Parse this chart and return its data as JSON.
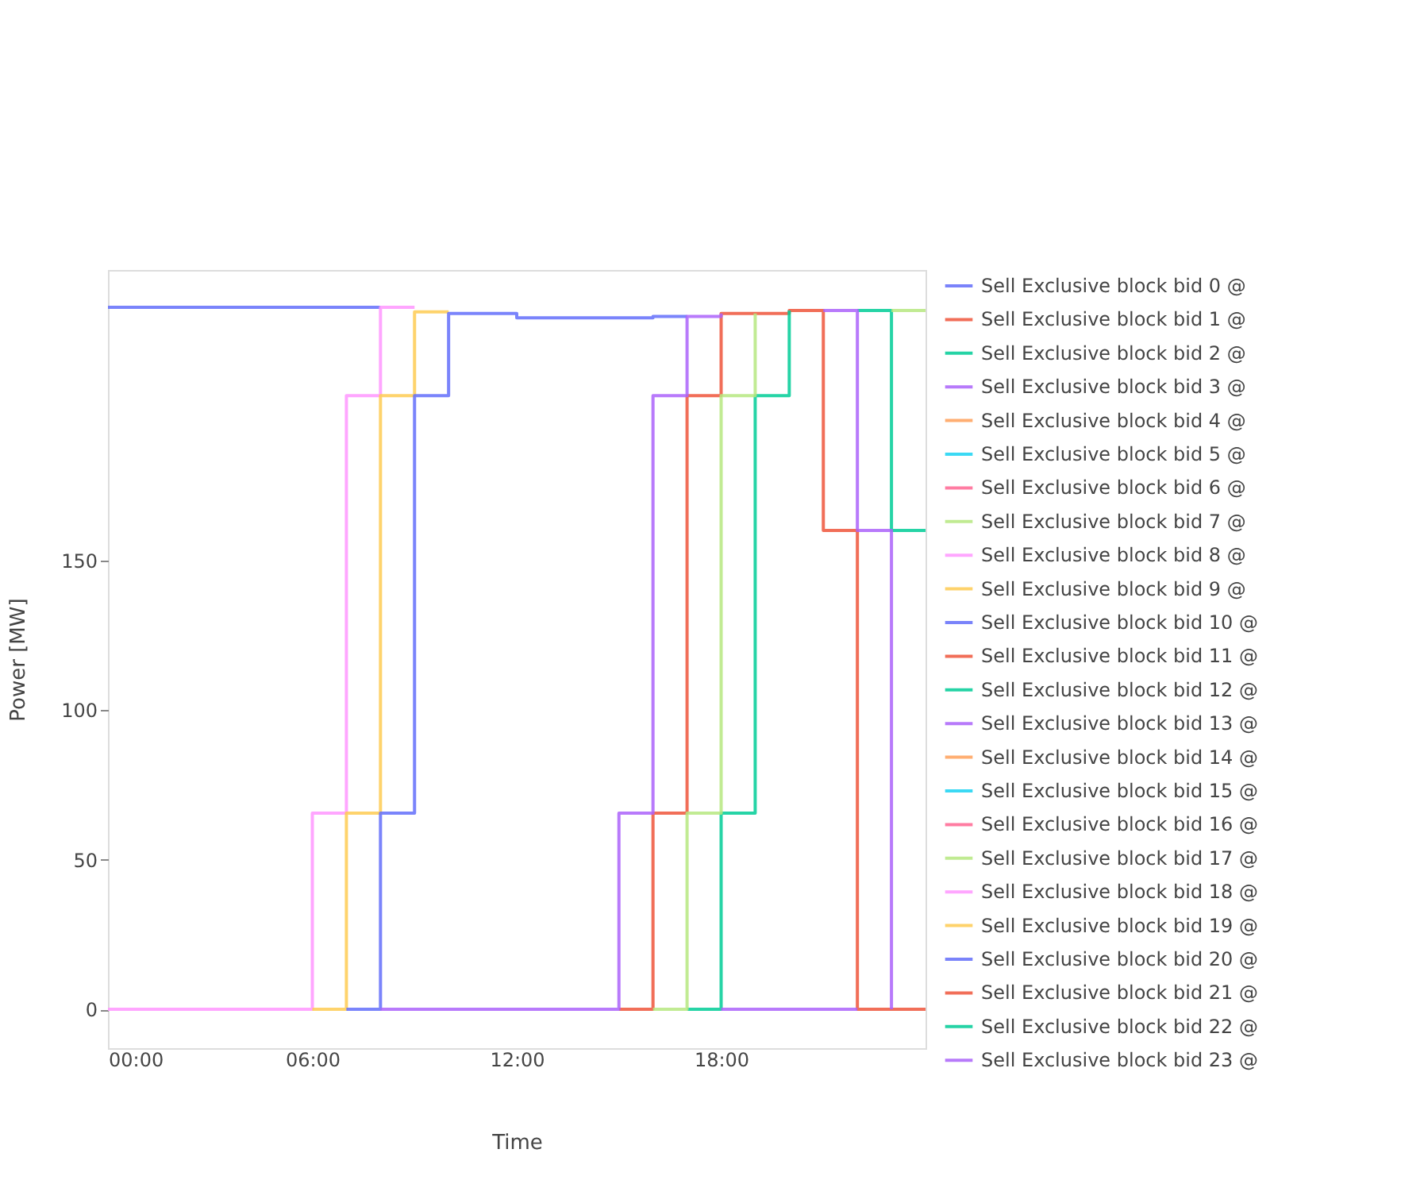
{
  "chart_data": {
    "type": "step",
    "xlabel": "Time",
    "ylabel": "Power [MW]",
    "legend": "right",
    "x": [
      0,
      1,
      2,
      3,
      4,
      5,
      6,
      7,
      8,
      9,
      10,
      11,
      12,
      13,
      14,
      15,
      16,
      17,
      18,
      19,
      20,
      21,
      22,
      23,
      24
    ],
    "xlim": [
      0,
      24
    ],
    "xticks": [
      {
        "value": 0,
        "label": "00:00"
      },
      {
        "value": 6,
        "label": "06:00"
      },
      {
        "value": 12,
        "label": "12:00"
      },
      {
        "value": 18,
        "label": "18:00"
      }
    ],
    "ylim": [
      -13,
      247
    ],
    "yticks": [
      0,
      50,
      100,
      150
    ],
    "series": [
      {
        "name": "Sell Exclusive block bid 0 @",
        "color": "#636efa",
        "values": [
          234.5,
          234.5,
          234.5,
          234.5,
          234.5,
          234.5,
          234.5,
          234.5,
          234.5,
          null,
          null,
          null,
          null,
          null,
          null,
          null,
          null,
          null,
          null,
          null,
          null,
          null,
          null,
          null,
          null
        ]
      },
      {
        "name": "Sell Exclusive block bid 1 @",
        "color": "#ef553b",
        "values": [
          null,
          null,
          null,
          null,
          null,
          null,
          null,
          null,
          null,
          null,
          null,
          null,
          null,
          null,
          null,
          null,
          null,
          null,
          null,
          null,
          null,
          null,
          null,
          null,
          null
        ]
      },
      {
        "name": "Sell Exclusive block bid 2 @",
        "color": "#00cc96",
        "values": [
          null,
          null,
          null,
          null,
          null,
          null,
          null,
          null,
          null,
          null,
          null,
          null,
          null,
          null,
          null,
          null,
          null,
          null,
          null,
          null,
          null,
          null,
          null,
          null,
          null
        ]
      },
      {
        "name": "Sell Exclusive block bid 3 @",
        "color": "#ab63fa",
        "values": [
          null,
          null,
          null,
          null,
          null,
          null,
          null,
          null,
          null,
          null,
          null,
          null,
          null,
          null,
          null,
          null,
          null,
          null,
          null,
          null,
          null,
          null,
          null,
          null,
          null
        ]
      },
      {
        "name": "Sell Exclusive block bid 4 @",
        "color": "#ffa15a",
        "values": [
          null,
          null,
          null,
          null,
          null,
          null,
          null,
          null,
          null,
          null,
          null,
          null,
          null,
          null,
          null,
          null,
          null,
          null,
          null,
          null,
          null,
          null,
          null,
          null,
          null
        ]
      },
      {
        "name": "Sell Exclusive block bid 5 @",
        "color": "#19d3f3",
        "values": [
          null,
          null,
          null,
          null,
          null,
          null,
          null,
          null,
          null,
          null,
          null,
          null,
          null,
          null,
          null,
          null,
          null,
          null,
          null,
          null,
          null,
          null,
          null,
          null,
          null
        ]
      },
      {
        "name": "Sell Exclusive block bid 6 @",
        "color": "#ff6692",
        "values": [
          null,
          null,
          null,
          null,
          null,
          null,
          null,
          null,
          null,
          null,
          null,
          null,
          null,
          null,
          null,
          null,
          null,
          null,
          null,
          null,
          null,
          null,
          null,
          null,
          null
        ]
      },
      {
        "name": "Sell Exclusive block bid 7 @",
        "color": "#b6e880",
        "values": [
          null,
          null,
          null,
          null,
          null,
          null,
          null,
          null,
          null,
          null,
          null,
          null,
          null,
          null,
          null,
          null,
          null,
          null,
          null,
          null,
          null,
          null,
          null,
          null,
          null
        ]
      },
      {
        "name": "Sell Exclusive block bid 8 @",
        "color": "#ff97ff",
        "values": [
          0,
          0,
          0,
          0,
          0,
          0,
          65.5,
          205,
          234.5,
          234.5,
          null,
          null,
          null,
          null,
          null,
          null,
          null,
          null,
          null,
          null,
          null,
          null,
          null,
          null,
          null
        ]
      },
      {
        "name": "Sell Exclusive block bid 9 @",
        "color": "#fecb52",
        "values": [
          null,
          null,
          null,
          null,
          null,
          null,
          0,
          65.5,
          205,
          233,
          233,
          null,
          null,
          null,
          null,
          null,
          null,
          null,
          null,
          null,
          null,
          null,
          null,
          null,
          null
        ]
      },
      {
        "name": "Sell Exclusive block bid 10 @",
        "color": "#636efa",
        "values": [
          null,
          null,
          null,
          null,
          null,
          null,
          null,
          0,
          65.5,
          205,
          232.5,
          232.5,
          231,
          231,
          231,
          231,
          231.5,
          231.5,
          null,
          null,
          null,
          null,
          null,
          null,
          null
        ]
      },
      {
        "name": "Sell Exclusive block bid 11 @",
        "color": "#ef553b",
        "values": [
          null,
          null,
          null,
          null,
          null,
          null,
          null,
          null,
          null,
          null,
          null,
          null,
          null,
          null,
          null,
          0,
          65.5,
          205,
          232.5,
          232.5,
          233.5,
          160,
          0,
          0,
          0
        ]
      },
      {
        "name": "Sell Exclusive block bid 12 @",
        "color": "#00cc96",
        "values": [
          null,
          null,
          null,
          null,
          null,
          null,
          null,
          null,
          null,
          null,
          null,
          null,
          null,
          null,
          null,
          null,
          null,
          0,
          65.5,
          205,
          233.5,
          null,
          233.5,
          160,
          160
        ]
      },
      {
        "name": "Sell Exclusive block bid 13 @",
        "color": "#ab63fa",
        "values": [
          null,
          null,
          null,
          null,
          null,
          null,
          null,
          null,
          0,
          0,
          0,
          0,
          0,
          0,
          0,
          65.5,
          205,
          231.5,
          232.5,
          null,
          null,
          233.5,
          160,
          0,
          null
        ]
      },
      {
        "name": "Sell Exclusive block bid 14 @",
        "color": "#ffa15a",
        "values": [
          null,
          null,
          null,
          null,
          null,
          null,
          null,
          null,
          null,
          null,
          null,
          null,
          null,
          null,
          null,
          null,
          null,
          null,
          null,
          null,
          null,
          null,
          null,
          null,
          null
        ]
      },
      {
        "name": "Sell Exclusive block bid 15 @",
        "color": "#19d3f3",
        "values": [
          null,
          null,
          null,
          null,
          null,
          null,
          null,
          null,
          null,
          null,
          null,
          null,
          null,
          null,
          null,
          null,
          null,
          null,
          null,
          null,
          null,
          null,
          null,
          null,
          null
        ]
      },
      {
        "name": "Sell Exclusive block bid 16 @",
        "color": "#ff6692",
        "values": [
          null,
          null,
          null,
          null,
          null,
          null,
          null,
          null,
          null,
          null,
          null,
          null,
          null,
          null,
          null,
          null,
          null,
          null,
          null,
          null,
          null,
          null,
          null,
          null,
          null
        ]
      },
      {
        "name": "Sell Exclusive block bid 17 @",
        "color": "#b6e880",
        "values": [
          null,
          null,
          null,
          null,
          null,
          null,
          null,
          null,
          null,
          null,
          null,
          null,
          null,
          null,
          null,
          null,
          0,
          65.5,
          205,
          232.5,
          null,
          null,
          null,
          233.5,
          233.5
        ]
      },
      {
        "name": "Sell Exclusive block bid 18 @",
        "color": "#ff97ff",
        "values": [
          null,
          null,
          null,
          null,
          null,
          null,
          null,
          null,
          null,
          null,
          null,
          null,
          null,
          null,
          null,
          null,
          null,
          null,
          null,
          null,
          null,
          null,
          null,
          null,
          null
        ]
      },
      {
        "name": "Sell Exclusive block bid 19 @",
        "color": "#fecb52",
        "values": [
          null,
          null,
          null,
          null,
          null,
          null,
          null,
          null,
          null,
          null,
          null,
          null,
          null,
          null,
          null,
          null,
          null,
          null,
          null,
          null,
          null,
          null,
          null,
          null,
          null
        ]
      },
      {
        "name": "Sell Exclusive block bid 20 @",
        "color": "#636efa",
        "values": [
          null,
          null,
          null,
          null,
          null,
          null,
          null,
          null,
          null,
          null,
          null,
          null,
          null,
          null,
          null,
          null,
          null,
          null,
          null,
          null,
          null,
          null,
          null,
          null,
          null
        ]
      },
      {
        "name": "Sell Exclusive block bid 21 @",
        "color": "#ef553b",
        "values": [
          null,
          null,
          null,
          null,
          null,
          null,
          null,
          null,
          null,
          null,
          null,
          null,
          null,
          null,
          null,
          null,
          null,
          null,
          null,
          null,
          null,
          null,
          null,
          null,
          null
        ]
      },
      {
        "name": "Sell Exclusive block bid 22 @",
        "color": "#00cc96",
        "values": [
          null,
          null,
          null,
          null,
          null,
          null,
          null,
          null,
          null,
          null,
          null,
          null,
          null,
          null,
          null,
          null,
          null,
          null,
          null,
          null,
          null,
          null,
          null,
          null,
          null
        ]
      },
      {
        "name": "Sell Exclusive block bid 23 @",
        "color": "#ab63fa",
        "values": [
          null,
          null,
          null,
          null,
          null,
          null,
          null,
          null,
          null,
          null,
          null,
          null,
          null,
          null,
          null,
          null,
          null,
          null,
          0,
          0,
          0,
          0,
          0,
          null,
          null
        ]
      }
    ]
  }
}
